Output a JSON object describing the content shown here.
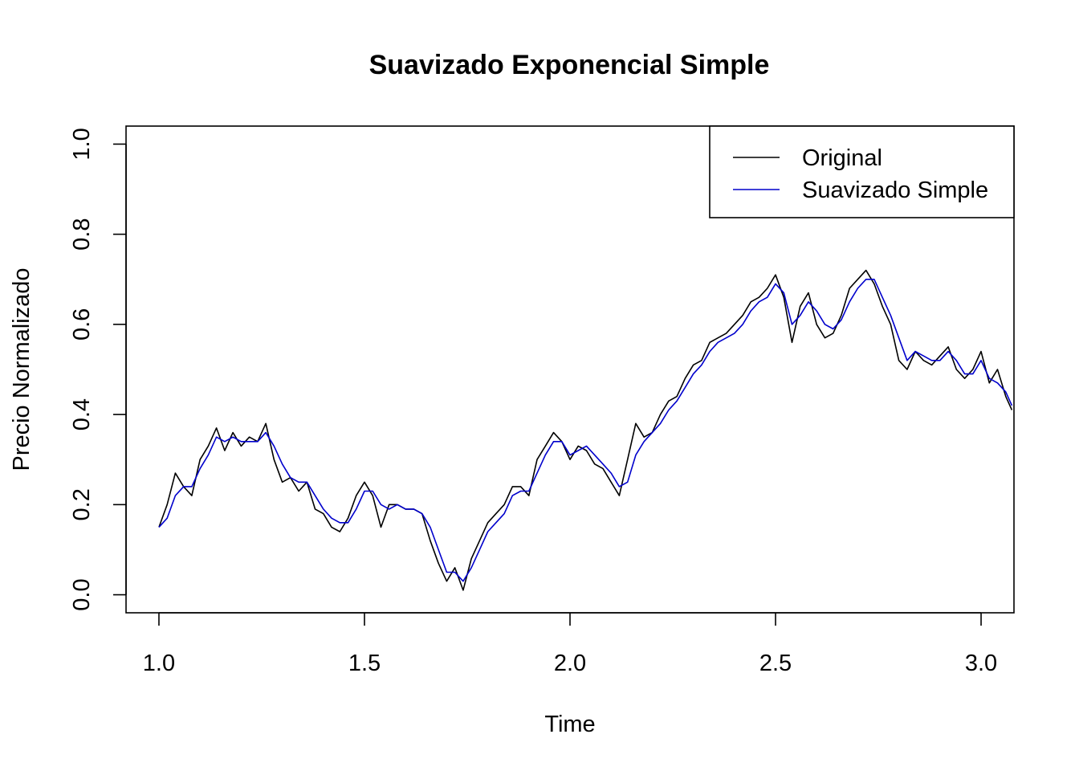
{
  "chart_data": {
    "type": "line",
    "title": "Suavizado Exponencial Simple",
    "xlabel": "Time",
    "ylabel": "Precio Normalizado",
    "xlim": [
      0.92,
      3.08
    ],
    "ylim": [
      -0.04,
      1.04
    ],
    "xticks": [
      1.0,
      1.5,
      2.0,
      2.5,
      3.0
    ],
    "xtick_labels": [
      "1.0",
      "1.5",
      "2.0",
      "2.5",
      "3.0"
    ],
    "yticks": [
      0.0,
      0.2,
      0.4,
      0.6,
      0.8,
      1.0
    ],
    "ytick_labels": [
      "0.0",
      "0.2",
      "0.4",
      "0.6",
      "0.8",
      "1.0"
    ],
    "grid": false,
    "legend": {
      "position": "top-right",
      "entries": [
        "Original",
        "Suavizado Simple"
      ]
    },
    "series": [
      {
        "name": "Original",
        "color": "#000000",
        "x": [
          1.0,
          1.02,
          1.04,
          1.06,
          1.08,
          1.1,
          1.12,
          1.14,
          1.16,
          1.18,
          1.2,
          1.22,
          1.24,
          1.26,
          1.28,
          1.3,
          1.32,
          1.34,
          1.36,
          1.38,
          1.4,
          1.42,
          1.44,
          1.46,
          1.48,
          1.5,
          1.52,
          1.54,
          1.56,
          1.58,
          1.6,
          1.62,
          1.64,
          1.66,
          1.68,
          1.7,
          1.72,
          1.74,
          1.76,
          1.78,
          1.8,
          1.82,
          1.84,
          1.86,
          1.88,
          1.9,
          1.92,
          1.94,
          1.96,
          1.98,
          2.0,
          2.02,
          2.04,
          2.06,
          2.08,
          2.1,
          2.12,
          2.14,
          2.16,
          2.18,
          2.2,
          2.22,
          2.24,
          2.26,
          2.28,
          2.3,
          2.32,
          2.34,
          2.36,
          2.38,
          2.4,
          2.42,
          2.44,
          2.46,
          2.48,
          2.5,
          2.52,
          2.54,
          2.56,
          2.58,
          2.6,
          2.62,
          2.64,
          2.66,
          2.68,
          2.7,
          2.72,
          2.74,
          2.76,
          2.78,
          2.8,
          2.82,
          2.84,
          2.86,
          2.88,
          2.9,
          2.92,
          2.94,
          2.96,
          2.98,
          3.0,
          3.02,
          3.04,
          3.06,
          3.075
        ],
        "y": [
          0.15,
          0.2,
          0.27,
          0.24,
          0.22,
          0.3,
          0.33,
          0.37,
          0.32,
          0.36,
          0.33,
          0.35,
          0.34,
          0.38,
          0.3,
          0.25,
          0.26,
          0.23,
          0.25,
          0.19,
          0.18,
          0.15,
          0.14,
          0.17,
          0.22,
          0.25,
          0.22,
          0.15,
          0.2,
          0.2,
          0.19,
          0.19,
          0.18,
          0.12,
          0.07,
          0.03,
          0.06,
          0.01,
          0.08,
          0.12,
          0.16,
          0.18,
          0.2,
          0.24,
          0.24,
          0.22,
          0.3,
          0.33,
          0.36,
          0.34,
          0.3,
          0.33,
          0.32,
          0.29,
          0.28,
          0.25,
          0.22,
          0.3,
          0.38,
          0.35,
          0.36,
          0.4,
          0.43,
          0.44,
          0.48,
          0.51,
          0.52,
          0.56,
          0.57,
          0.58,
          0.6,
          0.62,
          0.65,
          0.66,
          0.68,
          0.71,
          0.66,
          0.56,
          0.64,
          0.67,
          0.6,
          0.57,
          0.58,
          0.62,
          0.68,
          0.7,
          0.72,
          0.69,
          0.64,
          0.6,
          0.52,
          0.5,
          0.54,
          0.52,
          0.51,
          0.53,
          0.55,
          0.5,
          0.48,
          0.5,
          0.54,
          0.47,
          0.5,
          0.44,
          0.41
        ]
      },
      {
        "name": "Suavizado Simple",
        "color": "#0000cc",
        "x": [
          1.0,
          1.02,
          1.04,
          1.06,
          1.08,
          1.1,
          1.12,
          1.14,
          1.16,
          1.18,
          1.2,
          1.22,
          1.24,
          1.26,
          1.28,
          1.3,
          1.32,
          1.34,
          1.36,
          1.38,
          1.4,
          1.42,
          1.44,
          1.46,
          1.48,
          1.5,
          1.52,
          1.54,
          1.56,
          1.58,
          1.6,
          1.62,
          1.64,
          1.66,
          1.68,
          1.7,
          1.72,
          1.74,
          1.76,
          1.78,
          1.8,
          1.82,
          1.84,
          1.86,
          1.88,
          1.9,
          1.92,
          1.94,
          1.96,
          1.98,
          2.0,
          2.02,
          2.04,
          2.06,
          2.08,
          2.1,
          2.12,
          2.14,
          2.16,
          2.18,
          2.2,
          2.22,
          2.24,
          2.26,
          2.28,
          2.3,
          2.32,
          2.34,
          2.36,
          2.38,
          2.4,
          2.42,
          2.44,
          2.46,
          2.48,
          2.5,
          2.52,
          2.54,
          2.56,
          2.58,
          2.6,
          2.62,
          2.64,
          2.66,
          2.68,
          2.7,
          2.72,
          2.74,
          2.76,
          2.78,
          2.8,
          2.82,
          2.84,
          2.86,
          2.88,
          2.9,
          2.92,
          2.94,
          2.96,
          2.98,
          3.0,
          3.02,
          3.04,
          3.06,
          3.075
        ],
        "y": [
          0.15,
          0.17,
          0.22,
          0.24,
          0.24,
          0.28,
          0.31,
          0.35,
          0.34,
          0.35,
          0.34,
          0.34,
          0.34,
          0.36,
          0.33,
          0.29,
          0.26,
          0.25,
          0.25,
          0.22,
          0.19,
          0.17,
          0.16,
          0.16,
          0.19,
          0.23,
          0.23,
          0.2,
          0.19,
          0.2,
          0.19,
          0.19,
          0.18,
          0.15,
          0.1,
          0.05,
          0.05,
          0.03,
          0.06,
          0.1,
          0.14,
          0.16,
          0.18,
          0.22,
          0.23,
          0.23,
          0.27,
          0.31,
          0.34,
          0.34,
          0.31,
          0.32,
          0.33,
          0.31,
          0.29,
          0.27,
          0.24,
          0.25,
          0.31,
          0.34,
          0.36,
          0.38,
          0.41,
          0.43,
          0.46,
          0.49,
          0.51,
          0.54,
          0.56,
          0.57,
          0.58,
          0.6,
          0.63,
          0.65,
          0.66,
          0.69,
          0.67,
          0.6,
          0.62,
          0.65,
          0.63,
          0.6,
          0.59,
          0.61,
          0.65,
          0.68,
          0.7,
          0.7,
          0.66,
          0.62,
          0.57,
          0.52,
          0.54,
          0.53,
          0.52,
          0.52,
          0.54,
          0.52,
          0.49,
          0.49,
          0.52,
          0.48,
          0.47,
          0.45,
          0.42
        ]
      }
    ]
  }
}
